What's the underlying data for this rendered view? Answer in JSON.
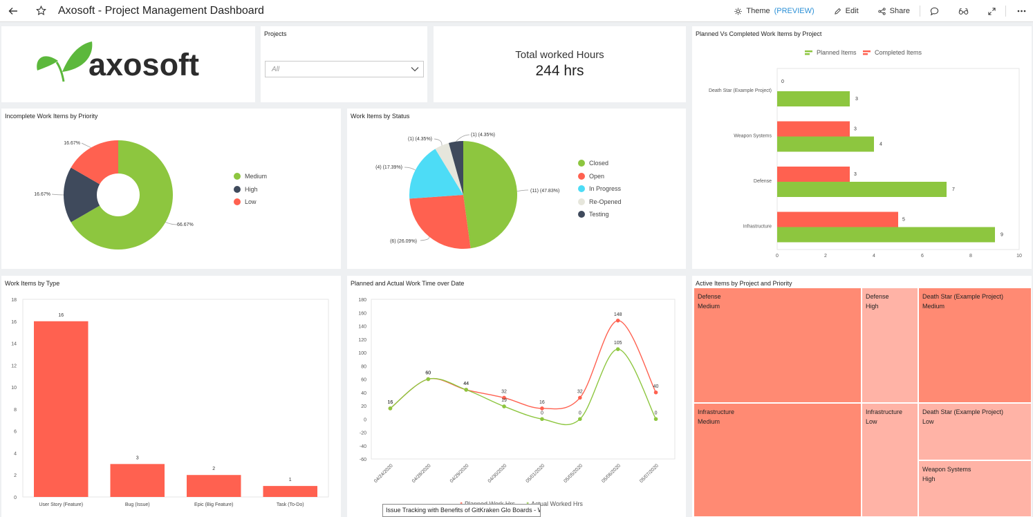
{
  "header": {
    "title": "Axosoft - Project Management Dashboard",
    "theme_label": "Theme",
    "preview_label": "(PREVIEW)",
    "edit_label": "Edit",
    "share_label": "Share"
  },
  "logo": {
    "text": "axosoft"
  },
  "projects": {
    "title": "Projects",
    "selected": "All"
  },
  "kpi": {
    "label": "Total worked Hours",
    "value": "244 hrs"
  },
  "colors": {
    "green": "#8dc63f",
    "red": "#ff6150",
    "dark": "#3f4a5c",
    "cyan": "#4ddcf6",
    "beige": "#e6e6dc",
    "tile_dark": "#ff8a73",
    "tile_light": "#ffb3a6"
  },
  "priority_panel": {
    "title": "Incomplete Work Items by Priority"
  },
  "status_panel": {
    "title": "Work Items by Status"
  },
  "planned_panel": {
    "title": "Planned Vs Completed Work Items by Project"
  },
  "type_panel": {
    "title": "Work Items by Type"
  },
  "time_panel": {
    "title": "Planned and Actual Work Time over Date"
  },
  "active_panel": {
    "title": "Active Items by Project and Priority",
    "tiles": [
      {
        "project": "Defense",
        "priority": "Medium"
      },
      {
        "project": "Defense",
        "priority": "High"
      },
      {
        "project": "Death Star (Example Project)",
        "priority": "Medium"
      },
      {
        "project": "Infrastructure",
        "priority": "Medium"
      },
      {
        "project": "Infrastructure",
        "priority": "Low"
      },
      {
        "project": "Death Star (Example Project)",
        "priority": "Low"
      },
      {
        "project": "Weapon Systems",
        "priority": "High"
      }
    ]
  },
  "tooltip": {
    "text": "Issue Tracking with Benefits of GitKraken Glo Boards - Wr..."
  },
  "chart_data": [
    {
      "id": "priority",
      "type": "pie",
      "title": "Incomplete Work Items by Priority",
      "labels": [
        "Medium",
        "High",
        "Low"
      ],
      "values": [
        66.67,
        16.67,
        16.67
      ],
      "data_labels": [
        "66.67%",
        "16.67%",
        "16.67%"
      ],
      "donut": true,
      "legend": "right"
    },
    {
      "id": "status",
      "type": "pie",
      "title": "Work Items by Status",
      "labels": [
        "Closed",
        "Open",
        "In Progress",
        "Re-Opened",
        "Testing"
      ],
      "values": [
        11,
        6,
        4,
        1,
        1
      ],
      "data_labels": [
        "(11) (47.83%)",
        "(6) (26.09%)",
        "(4) (17.39%)",
        "(1) (4.35%)",
        "(1) (4.35%)"
      ],
      "legend": "right"
    },
    {
      "id": "planned_vs_completed",
      "type": "bar",
      "orientation": "horizontal",
      "title": "Planned Vs Completed Work Items by Project",
      "categories": [
        "Death Star (Example Project)",
        "Weapon Systems",
        "Defense",
        "Infrastructure"
      ],
      "series": [
        {
          "name": "Completed Items",
          "values": [
            0,
            3,
            3,
            5
          ]
        },
        {
          "name": "Planned Items",
          "values": [
            3,
            4,
            7,
            9
          ]
        }
      ],
      "xlim": [
        0,
        10
      ],
      "xticks": [
        "0",
        "2",
        "4",
        "6",
        "8",
        "10"
      ],
      "legend": "top"
    },
    {
      "id": "by_type",
      "type": "bar",
      "title": "Work Items by Type",
      "categories": [
        "User Story (Feature)",
        "Bug (Issue)",
        "Epic (Big Feature)",
        "Task (To-Do)"
      ],
      "values": [
        16,
        3,
        2,
        1
      ],
      "ylim": [
        0,
        18
      ],
      "yticks": [
        "0",
        "2",
        "4",
        "6",
        "8",
        "10",
        "12",
        "14",
        "16",
        "18"
      ]
    },
    {
      "id": "work_time",
      "type": "line",
      "title": "Planned and Actual Work Time over Date",
      "x": [
        "04/24/2020",
        "04/28/2020",
        "04/29/2020",
        "04/30/2020",
        "05/01/2020",
        "05/05/2020",
        "05/06/2020",
        "05/07/2020"
      ],
      "series": [
        {
          "name": "Planned Work Hrs",
          "values": [
            16,
            60,
            44,
            32,
            16,
            32,
            148,
            40
          ]
        },
        {
          "name": "Actual Worked Hrs",
          "values": [
            16,
            60,
            44,
            19,
            0,
            0,
            105,
            0
          ]
        }
      ],
      "data_labels_planned": [
        "16",
        "60",
        "44",
        "32",
        "16",
        "32",
        "148",
        "40"
      ],
      "data_labels_actual": [
        "16",
        "60",
        "44",
        "19",
        "0",
        "0",
        "105",
        "0"
      ],
      "ylim": [
        -60,
        180
      ],
      "yticks": [
        "-60",
        "-40",
        "-20",
        "0",
        "20",
        "40",
        "60",
        "80",
        "100",
        "120",
        "140",
        "160",
        "180"
      ],
      "legend": "bottom"
    }
  ]
}
